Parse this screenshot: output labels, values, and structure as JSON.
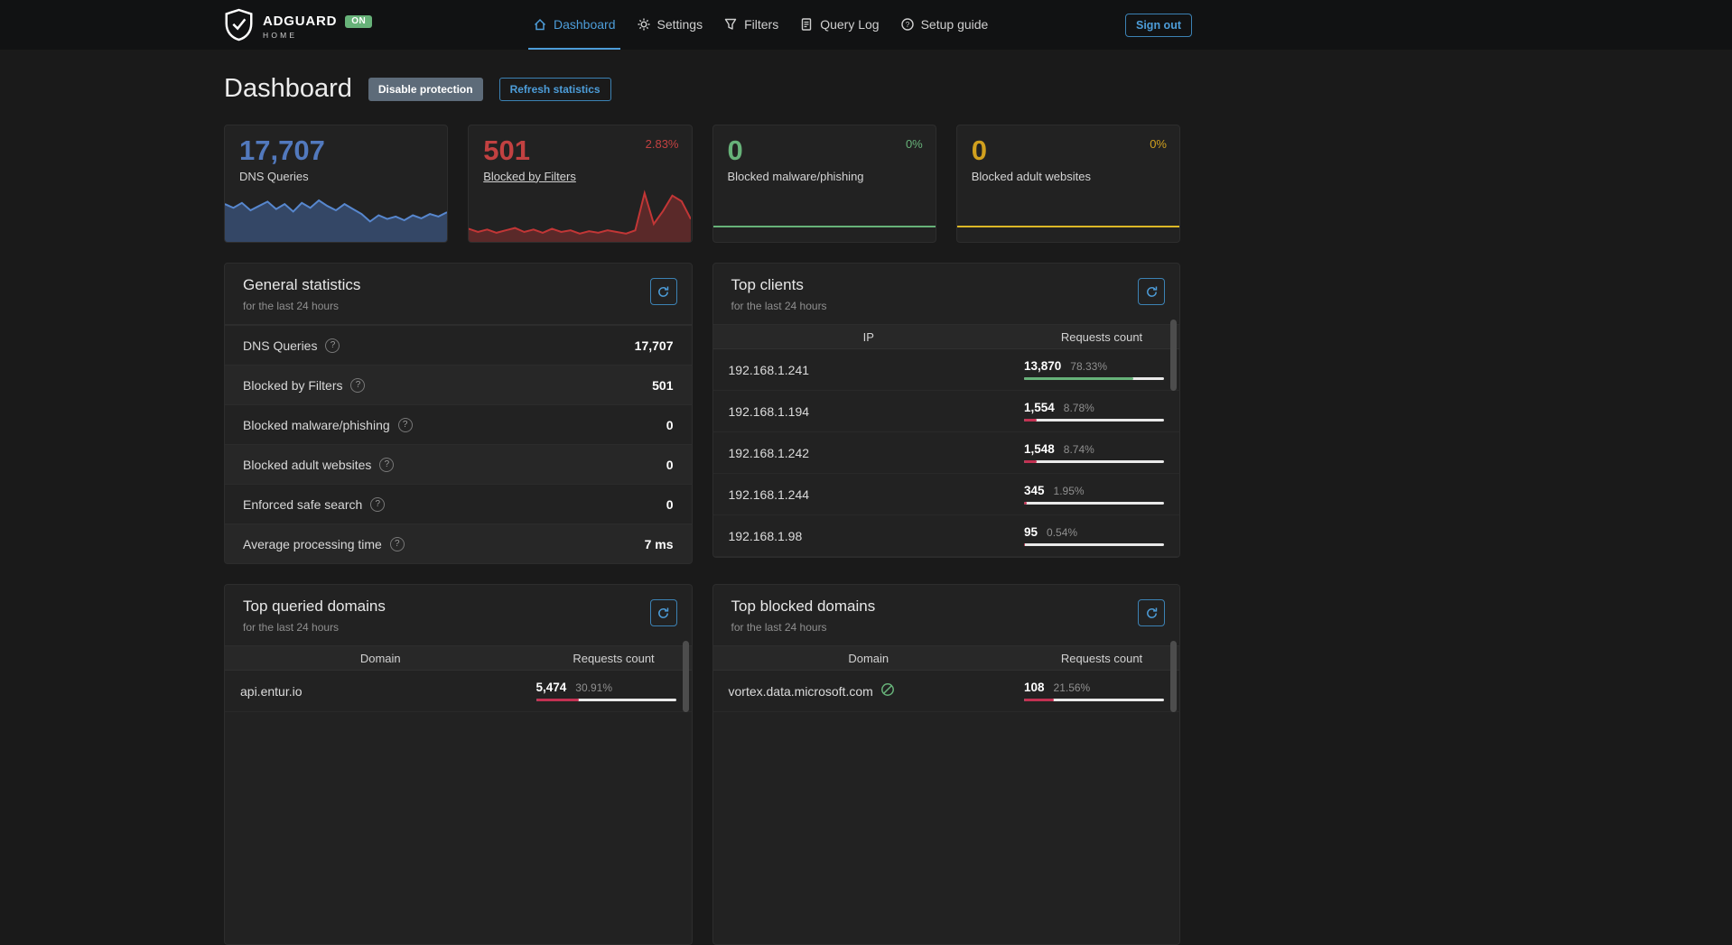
{
  "theme": {
    "accent_blue": "#4d9dd9",
    "green": "#67b279",
    "red": "#c23152",
    "yellow": "#d1a01e",
    "queries_blue": "#5279bd"
  },
  "header": {
    "brand": {
      "name": "ADGUARD",
      "sub": "HOME",
      "status": "ON"
    },
    "nav": [
      {
        "label": "Dashboard",
        "active": true
      },
      {
        "label": "Settings",
        "active": false
      },
      {
        "label": "Filters",
        "active": false
      },
      {
        "label": "Query Log",
        "active": false
      },
      {
        "label": "Setup guide",
        "active": false
      }
    ],
    "sign_out": "Sign out"
  },
  "page": {
    "title": "Dashboard",
    "disable_protection": "Disable protection",
    "refresh_statistics": "Refresh statistics"
  },
  "stat_cards": [
    {
      "value": "17,707",
      "label": "DNS Queries",
      "pct": "",
      "chart": {
        "values": [
          58,
          52,
          60,
          48,
          55,
          62,
          50,
          58,
          46,
          60,
          52,
          64,
          55,
          48,
          58,
          50,
          42,
          30,
          40,
          34,
          38,
          32,
          40,
          35,
          42,
          38,
          45
        ],
        "color": "#5787ce",
        "fill": "rgba(76,118,187,0.45)"
      }
    },
    {
      "value": "501",
      "label": "Blocked by Filters",
      "pct": "2.83%",
      "chart": {
        "values": [
          14,
          10,
          13,
          9,
          12,
          15,
          10,
          13,
          9,
          14,
          10,
          12,
          8,
          11,
          9,
          12,
          10,
          8,
          12,
          58,
          20,
          36,
          55,
          48,
          26
        ],
        "color": "#c23636",
        "fill": "rgba(194,54,54,0.35)"
      }
    },
    {
      "value": "0",
      "label": "Blocked malware/phishing",
      "pct": "0%",
      "chart": {
        "values": [
          0,
          0,
          0
        ],
        "color": "#67b279",
        "fill": ""
      }
    },
    {
      "value": "0",
      "label": "Blocked adult websites",
      "pct": "0%",
      "chart": {
        "values": [
          0,
          0,
          0
        ],
        "color": "#dcb726",
        "fill": ""
      }
    }
  ],
  "general_statistics": {
    "title": "General statistics",
    "subtitle": "for the last 24 hours",
    "rows": [
      {
        "label": "DNS Queries",
        "value": "17,707"
      },
      {
        "label": "Blocked by Filters",
        "value": "501"
      },
      {
        "label": "Blocked malware/phishing",
        "value": "0"
      },
      {
        "label": "Blocked adult websites",
        "value": "0"
      },
      {
        "label": "Enforced safe search",
        "value": "0"
      },
      {
        "label": "Average processing time",
        "value": "7 ms"
      }
    ]
  },
  "top_clients": {
    "title": "Top clients",
    "subtitle": "for the last 24 hours",
    "columns": [
      "IP",
      "Requests count"
    ],
    "rows": [
      {
        "ip": "192.168.1.241",
        "count": "13,870",
        "pct": "78.33%",
        "pct_value": 78.33,
        "bar_color": "#67b279"
      },
      {
        "ip": "192.168.1.194",
        "count": "1,554",
        "pct": "8.78%",
        "pct_value": 8.78,
        "bar_color": "#c23152"
      },
      {
        "ip": "192.168.1.242",
        "count": "1,548",
        "pct": "8.74%",
        "pct_value": 8.74,
        "bar_color": "#c23152"
      },
      {
        "ip": "192.168.1.244",
        "count": "345",
        "pct": "1.95%",
        "pct_value": 1.95,
        "bar_color": "#c23152"
      },
      {
        "ip": "192.168.1.98",
        "count": "95",
        "pct": "0.54%",
        "pct_value": 0.54,
        "bar_color": "#c23152"
      }
    ]
  },
  "top_queried_domains": {
    "title": "Top queried domains",
    "subtitle": "for the last 24 hours",
    "columns": [
      "Domain",
      "Requests count"
    ],
    "rows": [
      {
        "domain": "api.entur.io",
        "count": "5,474",
        "pct": "30.91%",
        "pct_value": 30.91,
        "bar_color": "#c23152"
      }
    ]
  },
  "top_blocked_domains": {
    "title": "Top blocked domains",
    "subtitle": "for the last 24 hours",
    "columns": [
      "Domain",
      "Requests count"
    ],
    "rows": [
      {
        "domain": "vortex.data.microsoft.com",
        "count": "108",
        "pct": "21.56%",
        "pct_value": 21.56,
        "bar_color": "#c23152"
      }
    ]
  }
}
